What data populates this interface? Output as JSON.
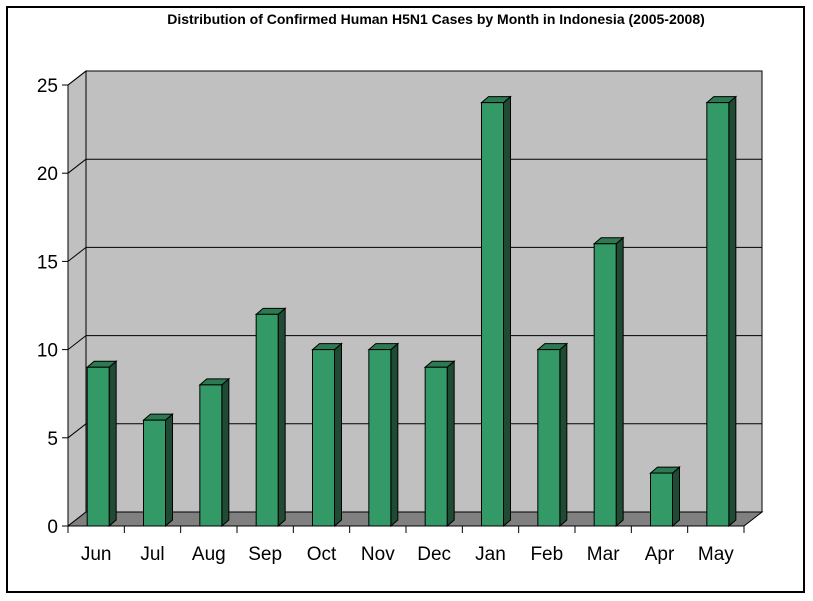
{
  "chart_data": {
    "type": "bar",
    "title": "Distribution of Confirmed Human H5N1 Cases by Month in Indonesia (2005-2008)",
    "categories": [
      "Jun",
      "Jul",
      "Aug",
      "Sep",
      "Oct",
      "Nov",
      "Dec",
      "Jan",
      "Feb",
      "Mar",
      "Apr",
      "May"
    ],
    "values": [
      9,
      6,
      8,
      12,
      10,
      10,
      9,
      24,
      10,
      16,
      3,
      24
    ],
    "xlabel": "",
    "ylabel": "",
    "ylim": [
      0,
      25
    ],
    "yticks": [
      "0",
      "5",
      "10",
      "15",
      "20",
      "25"
    ],
    "grid": true,
    "legend": "none",
    "colors": {
      "bar_front": "#339966",
      "bar_side": "#1f4a34",
      "bar_top": "#2c7a52",
      "wall": "#c0c0c0",
      "floor": "#808080"
    }
  }
}
